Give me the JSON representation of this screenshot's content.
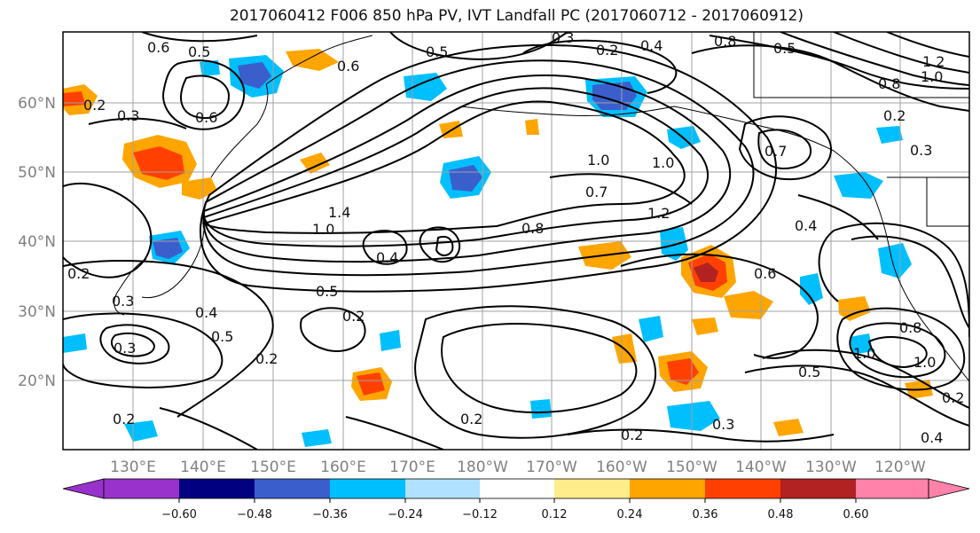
{
  "title": "2017060412 F006 850 hPa PV, IVT Landfall PC (2017060712 - 2017060912)",
  "lat_labels": [
    "60°N",
    "50°N",
    "40°N",
    "30°N",
    "20°N"
  ],
  "lon_labels": [
    "130°E",
    "140°E",
    "150°E",
    "160°E",
    "170°E",
    "180°W",
    "170°W",
    "160°W",
    "150°W",
    "140°W",
    "130°W",
    "120°W"
  ],
  "colorbar": {
    "colors": [
      "#9932cc",
      "#000080",
      "#3a5fcd",
      "#00bfff",
      "#b0e2ff",
      "#ffffff",
      "#ffec8b",
      "#ffa500",
      "#ff4000",
      "#b22222",
      "#ff82ab"
    ],
    "tick_labels": [
      "−0.60",
      "−0.48",
      "−0.36",
      "−0.24",
      "−0.12",
      "0.12",
      "0.24",
      "0.36",
      "0.48",
      "0.60"
    ]
  },
  "contour_labels": [
    "0.6",
    "0.5",
    "0.3",
    "0.4",
    "0.2",
    "0.8",
    "0.5",
    "1.2",
    "0.8",
    "1.0",
    "0.2",
    "0.3",
    "0.6",
    "0.5",
    "0.3",
    "0.6",
    "0.2",
    "1.0",
    "0.7",
    "1.0",
    "0.7",
    "1.2",
    "1.4",
    "1.0",
    "0.8",
    "0.4",
    "0.4",
    "0.6",
    "0.5",
    "0.4",
    "0.2",
    "0.5",
    "0.3",
    "0.2",
    "0.2",
    "0.2",
    "0.3",
    "0.2",
    "0.4",
    "1.0",
    "1.0",
    "0.8",
    "0.5",
    "0.2",
    "0.3",
    "0.2"
  ]
}
